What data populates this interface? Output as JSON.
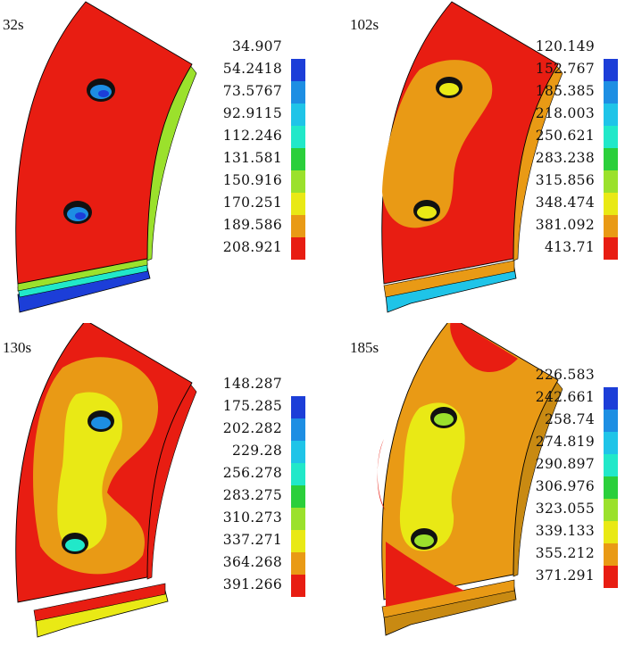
{
  "colors": {
    "background": "#ffffff",
    "hot": "#e81d12",
    "warm": "#e99a15",
    "yellow": "#e9e915",
    "scale": [
      "#1c3ed8",
      "#1d8ee3",
      "#1fc4e8",
      "#21e8c9",
      "#2bcf3b",
      "#9be12c",
      "#e9e915",
      "#e99a15",
      "#e81d12"
    ]
  },
  "panels": [
    {
      "time": "32s",
      "legend": [
        "34.907",
        "54.2418",
        "73.5767",
        "92.9115",
        "112.246",
        "131.581",
        "150.916",
        "170.251",
        "189.586",
        "208.921"
      ]
    },
    {
      "time": "102s",
      "legend": [
        "120.149",
        "152.767",
        "185.385",
        "218.003",
        "250.621",
        "283.238",
        "315.856",
        "348.474",
        "381.092",
        "413.71"
      ]
    },
    {
      "time": "130s",
      "legend": [
        "148.287",
        "175.285",
        "202.282",
        "229.28",
        "256.278",
        "283.275",
        "310.273",
        "337.271",
        "364.268",
        "391.266"
      ]
    },
    {
      "time": "185s",
      "legend": [
        "226.583",
        "242.661",
        "258.74",
        "274.819",
        "290.897",
        "306.976",
        "323.055",
        "339.133",
        "355.212",
        "371.291"
      ]
    }
  ]
}
